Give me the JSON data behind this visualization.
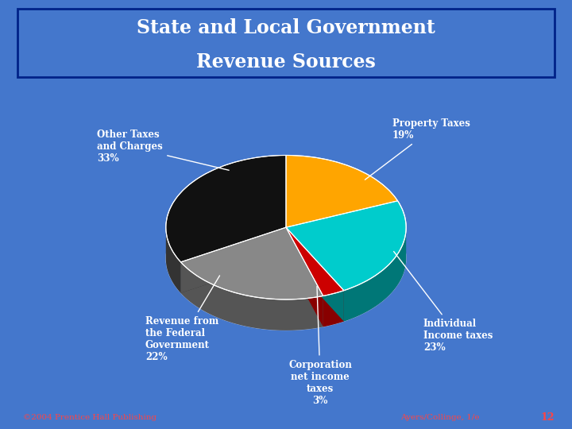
{
  "title_line1": "State and Local Government",
  "title_line2": "Revenue Sources",
  "slices": [
    {
      "label": "Other Taxes\nand Charges\n33%",
      "value": 33,
      "color": "#111111",
      "side_color": "#333333"
    },
    {
      "label": "Revenue from\nthe Federal\nGovernment\n22%",
      "value": 22,
      "color": "#888888",
      "side_color": "#555555"
    },
    {
      "label": "Corporation\nnet income\ntaxes\n3%",
      "value": 3,
      "color": "#CC0000",
      "side_color": "#880000"
    },
    {
      "label": "Individual\nIncome taxes\n23%",
      "value": 23,
      "color": "#00CCCC",
      "side_color": "#007777"
    },
    {
      "label": "Property Taxes\n19%",
      "value": 19,
      "color": "#FFA500",
      "side_color": "#996600"
    }
  ],
  "background_color": "#4477CC",
  "title_bg_color": "#003399",
  "title_color": "#FFFFFF",
  "label_color": "#FFFFFF",
  "footer_left": "©2004 Prentice Hall Publishing",
  "footer_right": "Ayers/Collinge, 1/e",
  "footer_number": "12",
  "footer_color": "#FF4444",
  "footer_bg": "#000066"
}
